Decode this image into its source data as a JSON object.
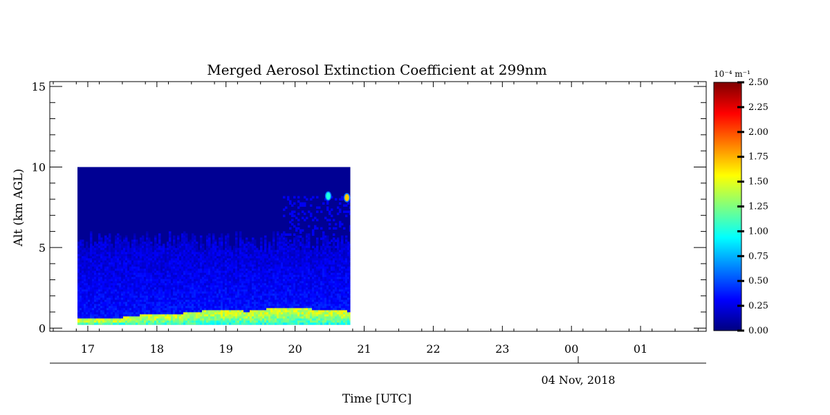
{
  "chart_data": {
    "type": "heatmap",
    "title": "Merged Aerosol Extinction Coefficient at 299nm",
    "xlabel": "Time [UTC]",
    "ylabel": "Alt (km AGL)",
    "date_label": "04 Nov, 2018",
    "x_tick_labels": [
      "17",
      "18",
      "19",
      "20",
      "21",
      "22",
      "23",
      "00",
      "01"
    ],
    "y_tick_labels": [
      "0",
      "5",
      "10",
      "15"
    ],
    "x_range_hours": [
      16.45,
      25.95
    ],
    "y_range_km": [
      -0.2,
      15.3
    ],
    "data_time_range_hours": [
      16.85,
      20.8
    ],
    "data_altitude_range_km": [
      0.2,
      10.0
    ],
    "colorbar": {
      "unit_label": "10⁻⁴ m⁻¹",
      "min": 0.0,
      "max": 2.5,
      "tick_labels": [
        "0.00",
        "0.25",
        "0.50",
        "0.75",
        "1.00",
        "1.25",
        "1.50",
        "1.75",
        "2.00",
        "2.25",
        "2.50"
      ],
      "colormap": [
        "#00007f",
        "#0000ff",
        "#007fff",
        "#00ffff",
        "#7fff7f",
        "#ffff00",
        "#ff7f00",
        "#ff0000",
        "#7f0000"
      ]
    },
    "background_value": 0.05,
    "boundary_layer_top_km": [
      [
        16.85,
        0.7
      ],
      [
        17.3,
        0.6
      ],
      [
        17.8,
        0.9
      ],
      [
        18.2,
        0.9
      ],
      [
        18.6,
        1.1
      ],
      [
        18.9,
        1.2
      ],
      [
        19.3,
        1.1
      ],
      [
        19.7,
        1.3
      ],
      [
        20.0,
        1.3
      ],
      [
        20.4,
        1.2
      ],
      [
        20.8,
        1.1
      ]
    ],
    "boundary_layer_peak_value": 1.6,
    "aerosol_layer_top_km": 5.5,
    "aerosol_layer_value": 0.35,
    "features": [
      {
        "time": 20.75,
        "altitude_km": 8.1,
        "value": 1.7
      },
      {
        "time": 20.48,
        "altitude_km": 8.2,
        "value": 1.0
      }
    ]
  }
}
